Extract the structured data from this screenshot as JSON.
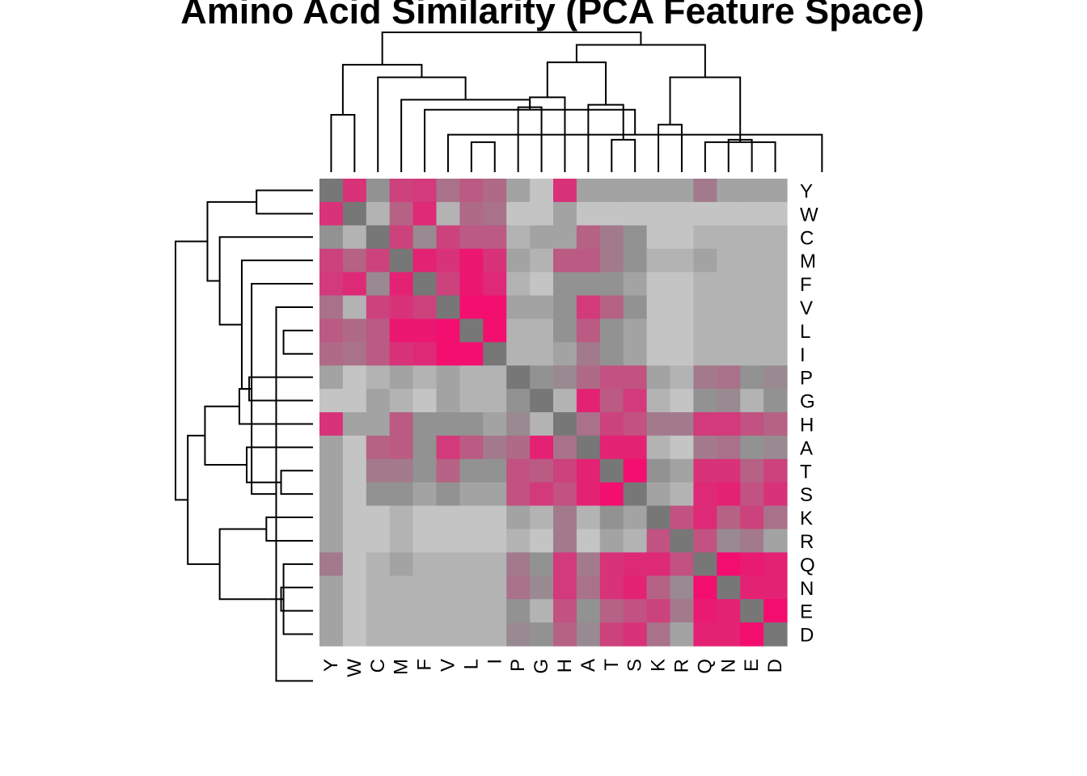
{
  "chart_data": {
    "type": "heatmap",
    "title": "Amino Acid Similarity (PCA Feature Space)",
    "xlabel": "",
    "ylabel": "",
    "row_labels": [
      "Y",
      "W",
      "C",
      "M",
      "F",
      "V",
      "L",
      "I",
      "P",
      "G",
      "H",
      "A",
      "T",
      "S",
      "K",
      "R",
      "Q",
      "N",
      "E",
      "D"
    ],
    "col_labels": [
      "Y",
      "W",
      "C",
      "M",
      "F",
      "V",
      "L",
      "I",
      "P",
      "G",
      "H",
      "A",
      "T",
      "S",
      "K",
      "R",
      "Q",
      "N",
      "E",
      "D"
    ],
    "value_range": [
      0,
      1
    ],
    "colors": {
      "diagonal": "#777777",
      "low": "#c4c4c4",
      "mid": "#929292",
      "high": "#f50a6e"
    },
    "values": [
      [
        -1,
        0.75,
        0.15,
        0.65,
        0.7,
        0.35,
        0.5,
        0.4,
        0.1,
        0.0,
        0.75,
        0.1,
        0.1,
        0.1,
        0.1,
        0.1,
        0.3,
        0.1,
        0.1,
        0.1
      ],
      [
        0.75,
        -1,
        0.05,
        0.45,
        0.8,
        0.05,
        0.4,
        0.35,
        0.0,
        0.0,
        0.1,
        0.0,
        0.0,
        0.0,
        0.0,
        0.0,
        0.0,
        0.0,
        0.0,
        0.0
      ],
      [
        0.15,
        0.05,
        -1,
        0.65,
        0.2,
        0.65,
        0.5,
        0.5,
        0.05,
        0.1,
        0.1,
        0.45,
        0.3,
        0.15,
        0.0,
        0.0,
        0.05,
        0.05,
        0.05,
        0.05
      ],
      [
        0.65,
        0.45,
        0.65,
        -1,
        0.85,
        0.75,
        0.92,
        0.75,
        0.1,
        0.05,
        0.5,
        0.5,
        0.3,
        0.15,
        0.05,
        0.05,
        0.1,
        0.05,
        0.05,
        0.05
      ],
      [
        0.7,
        0.8,
        0.2,
        0.85,
        -1,
        0.65,
        0.92,
        0.8,
        0.05,
        0.0,
        0.15,
        0.15,
        0.15,
        0.1,
        0.0,
        0.0,
        0.05,
        0.05,
        0.05,
        0.05
      ],
      [
        0.35,
        0.05,
        0.65,
        0.75,
        0.65,
        -1,
        0.97,
        0.97,
        0.1,
        0.1,
        0.15,
        0.7,
        0.45,
        0.15,
        0.0,
        0.0,
        0.05,
        0.05,
        0.05,
        0.05
      ],
      [
        0.5,
        0.4,
        0.5,
        0.92,
        0.92,
        0.97,
        -1,
        0.97,
        0.05,
        0.05,
        0.15,
        0.5,
        0.15,
        0.1,
        0.0,
        0.0,
        0.05,
        0.05,
        0.05,
        0.05
      ],
      [
        0.4,
        0.35,
        0.5,
        0.75,
        0.8,
        0.97,
        0.97,
        -1,
        0.05,
        0.05,
        0.1,
        0.3,
        0.15,
        0.1,
        0.0,
        0.0,
        0.05,
        0.05,
        0.05,
        0.05
      ],
      [
        0.1,
        0.0,
        0.05,
        0.1,
        0.05,
        0.1,
        0.05,
        0.05,
        -1,
        0.15,
        0.2,
        0.4,
        0.55,
        0.55,
        0.1,
        0.05,
        0.3,
        0.35,
        0.15,
        0.2
      ],
      [
        0.0,
        0.0,
        0.1,
        0.05,
        0.0,
        0.1,
        0.05,
        0.05,
        0.15,
        -1,
        0.05,
        0.85,
        0.5,
        0.7,
        0.05,
        0.0,
        0.15,
        0.2,
        0.05,
        0.15
      ],
      [
        0.75,
        0.1,
        0.1,
        0.5,
        0.15,
        0.15,
        0.15,
        0.1,
        0.2,
        0.05,
        -1,
        0.35,
        0.65,
        0.55,
        0.3,
        0.3,
        0.7,
        0.7,
        0.55,
        0.45
      ],
      [
        0.1,
        0.0,
        0.45,
        0.5,
        0.15,
        0.7,
        0.5,
        0.3,
        0.4,
        0.85,
        0.35,
        -1,
        0.85,
        0.85,
        0.05,
        0.0,
        0.3,
        0.35,
        0.15,
        0.2
      ],
      [
        0.1,
        0.0,
        0.3,
        0.3,
        0.15,
        0.45,
        0.15,
        0.15,
        0.55,
        0.5,
        0.65,
        0.85,
        -1,
        0.97,
        0.15,
        0.1,
        0.75,
        0.75,
        0.45,
        0.65
      ],
      [
        0.1,
        0.0,
        0.15,
        0.15,
        0.1,
        0.15,
        0.1,
        0.1,
        0.55,
        0.7,
        0.55,
        0.85,
        0.97,
        -1,
        0.1,
        0.05,
        0.8,
        0.85,
        0.55,
        0.75
      ],
      [
        0.1,
        0.0,
        0.0,
        0.05,
        0.0,
        0.0,
        0.0,
        0.0,
        0.1,
        0.05,
        0.3,
        0.05,
        0.15,
        0.1,
        -1,
        0.55,
        0.8,
        0.45,
        0.65,
        0.35
      ],
      [
        0.1,
        0.0,
        0.0,
        0.05,
        0.0,
        0.0,
        0.0,
        0.0,
        0.05,
        0.0,
        0.3,
        0.0,
        0.1,
        0.05,
        0.55,
        -1,
        0.55,
        0.2,
        0.3,
        0.1
      ],
      [
        0.3,
        0.0,
        0.05,
        0.1,
        0.05,
        0.05,
        0.05,
        0.05,
        0.3,
        0.15,
        0.7,
        0.3,
        0.75,
        0.8,
        0.8,
        0.55,
        -1,
        0.98,
        0.9,
        0.85
      ],
      [
        0.1,
        0.0,
        0.05,
        0.05,
        0.05,
        0.05,
        0.05,
        0.05,
        0.35,
        0.2,
        0.7,
        0.35,
        0.75,
        0.85,
        0.45,
        0.2,
        0.98,
        -1,
        0.85,
        0.85
      ],
      [
        0.1,
        0.0,
        0.05,
        0.05,
        0.05,
        0.05,
        0.05,
        0.05,
        0.15,
        0.05,
        0.55,
        0.15,
        0.45,
        0.55,
        0.65,
        0.3,
        0.9,
        0.85,
        -1,
        0.98
      ],
      [
        0.1,
        0.0,
        0.05,
        0.05,
        0.05,
        0.05,
        0.05,
        0.05,
        0.2,
        0.15,
        0.45,
        0.2,
        0.65,
        0.75,
        0.35,
        0.1,
        0.85,
        0.85,
        0.98,
        -1
      ]
    ],
    "dendrogram": {
      "merges": [
        [
          7,
          8,
          1.2
        ],
        [
          17,
          20,
          1.2
        ],
        [
          13,
          14,
          1.3
        ],
        [
          18,
          19,
          1.3
        ],
        [
          15,
          16,
          1.9
        ],
        [
          1,
          2,
          2.3
        ],
        [
          6,
          22,
          1.5
        ],
        [
          9,
          10,
          2.6
        ],
        [
          -2,
          -4,
          1.8
        ],
        [
          5,
          -7,
          2.5
        ],
        [
          12,
          -3,
          2.7
        ],
        [
          4,
          -10,
          2.9
        ],
        [
          -8,
          11,
          3.0
        ],
        [
          -5,
          -9,
          3.8
        ],
        [
          3,
          -12,
          3.8
        ],
        [
          -13,
          -11,
          4.4
        ],
        [
          -6,
          -15,
          4.3
        ],
        [
          -16,
          -14,
          5.1
        ],
        [
          -17,
          -18,
          5.6
        ]
      ]
    }
  }
}
